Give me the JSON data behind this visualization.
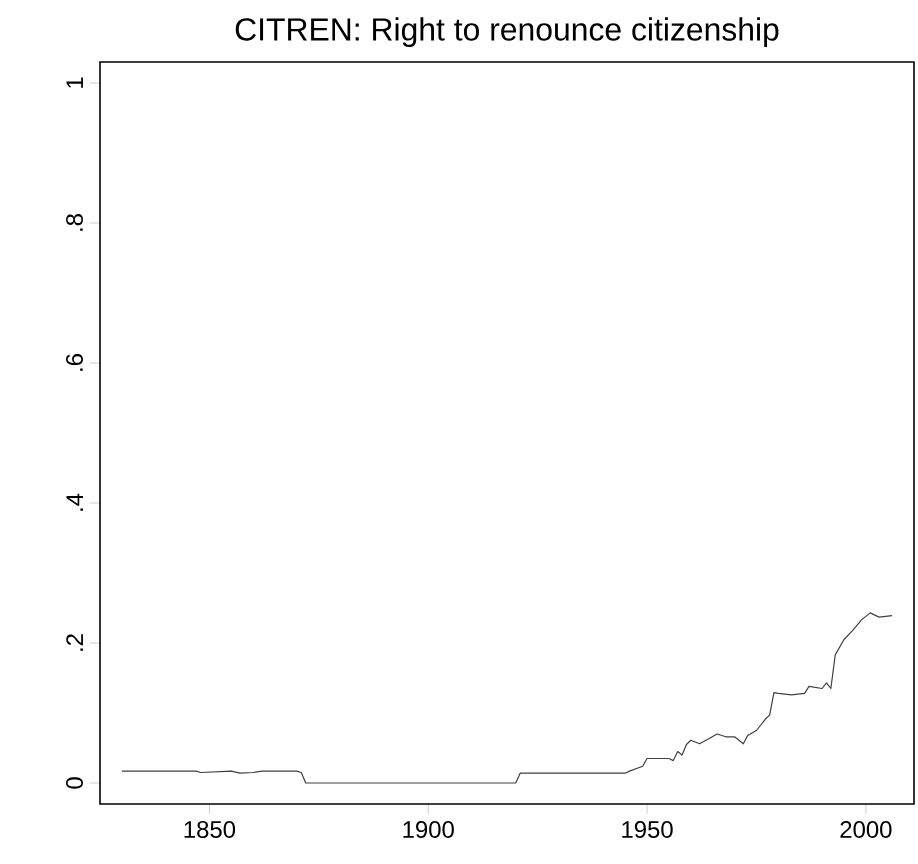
{
  "chart_data": {
    "type": "line",
    "title": "CITREN: Right to renounce citizenship",
    "x": [
      1830,
      1847,
      1848,
      1855,
      1857,
      1860,
      1862,
      1870,
      1871,
      1872,
      1920,
      1921,
      1945,
      1946,
      1949,
      1950,
      1955,
      1956,
      1957,
      1958,
      1959,
      1960,
      1962,
      1964,
      1966,
      1968,
      1970,
      1971,
      1972,
      1973,
      1975,
      1977,
      1978,
      1979,
      1980,
      1983,
      1986,
      1987,
      1990,
      1991,
      1992,
      1993,
      1995,
      1997,
      1999,
      2001,
      2003,
      2006
    ],
    "series": [
      {
        "color": "#404040",
        "values": [
          0.017,
          0.017,
          0.015,
          0.017,
          0.014,
          0.015,
          0.017,
          0.017,
          0.015,
          0.0,
          0.0,
          0.014,
          0.014,
          0.017,
          0.024,
          0.035,
          0.035,
          0.032,
          0.045,
          0.04,
          0.055,
          0.061,
          0.056,
          0.063,
          0.07,
          0.066,
          0.066,
          0.061,
          0.056,
          0.068,
          0.075,
          0.091,
          0.097,
          0.129,
          0.128,
          0.126,
          0.128,
          0.138,
          0.135,
          0.143,
          0.135,
          0.183,
          0.205,
          0.218,
          0.233,
          0.243,
          0.237,
          0.239
        ]
      }
    ],
    "xlim": [
      1825,
      2011
    ],
    "ylim": [
      -0.03,
      1.03
    ],
    "xticks": [
      1850,
      1900,
      1950,
      2000
    ],
    "yticks": [
      0,
      {
        "value": 0.2,
        "label": ".2"
      },
      {
        "value": 0.4,
        "label": ".4"
      },
      {
        "value": 0.6,
        "label": ".6"
      },
      {
        "value": 0.8,
        "label": ".8"
      },
      1
    ],
    "line_style": "solid"
  }
}
